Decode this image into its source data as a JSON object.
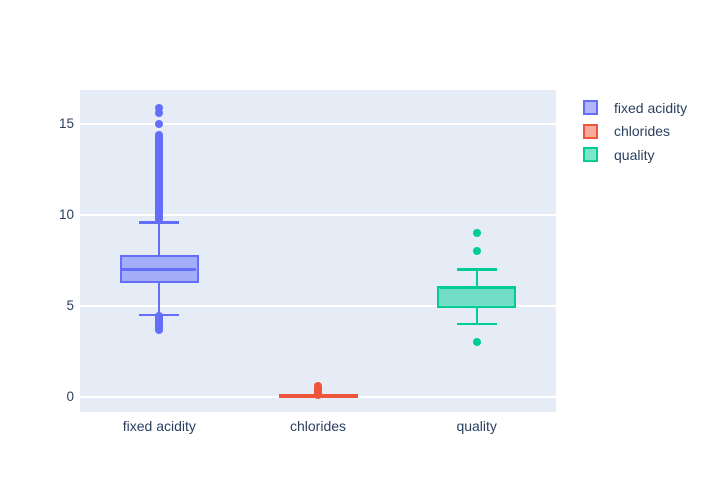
{
  "figure": {
    "background": "#ffffff",
    "plot_background": "#E5ECF6",
    "grid_color": "#ffffff",
    "text_color": "#2a3f5f"
  },
  "chart_data": {
    "type": "box",
    "orientation": "vertical",
    "title": "",
    "xlabel": "",
    "ylabel": "",
    "categories": [
      "fixed acidity",
      "chlorides",
      "quality"
    ],
    "yaxis": {
      "tick_values": [
        0,
        5,
        10,
        15
      ],
      "tick_labels": [
        "0",
        "5",
        "10",
        "15"
      ],
      "range": [
        -0.82,
        16.87
      ],
      "grid": true,
      "zeroline": true
    },
    "legend": {
      "position": "right",
      "items": [
        {
          "label": "fixed acidity",
          "color": "#636EFA"
        },
        {
          "label": "chlorides",
          "color": "#EF553B"
        },
        {
          "label": "quality",
          "color": "#00CC96"
        }
      ]
    },
    "series": [
      {
        "name": "fixed acidity",
        "line_color": "#636EFA",
        "fill_color": "rgba(99,110,250,0.5)",
        "stats": {
          "lower_whisker": 4.5,
          "q1": 6.4,
          "median": 7.0,
          "q3": 7.7,
          "upper_whisker": 9.6
        },
        "outliers": {
          "high_points": [
            15.0,
            15.6,
            15.9
          ],
          "high_band": [
            9.7,
            14.4
          ],
          "low_points": [],
          "low_band": [
            3.7,
            4.45
          ]
        }
      },
      {
        "name": "chlorides",
        "line_color": "#EF553B",
        "fill_color": "rgba(239,85,59,0.5)",
        "stats": {
          "lower_whisker": 0.009,
          "q1": 0.038,
          "median": 0.047,
          "q3": 0.065,
          "upper_whisker": 0.105
        },
        "outliers": {
          "high_points": [],
          "high_band": [
            0.11,
            0.61
          ],
          "low_points": [],
          "low_band": null
        }
      },
      {
        "name": "quality",
        "line_color": "#00CC96",
        "fill_color": "rgba(0,204,150,0.5)",
        "stats": {
          "lower_whisker": 4,
          "q1": 5,
          "median": 6,
          "q3": 6,
          "upper_whisker": 7
        },
        "outliers": {
          "high_points": [
            8,
            9
          ],
          "high_band": null,
          "low_points": [
            3
          ],
          "low_band": null
        }
      }
    ]
  }
}
